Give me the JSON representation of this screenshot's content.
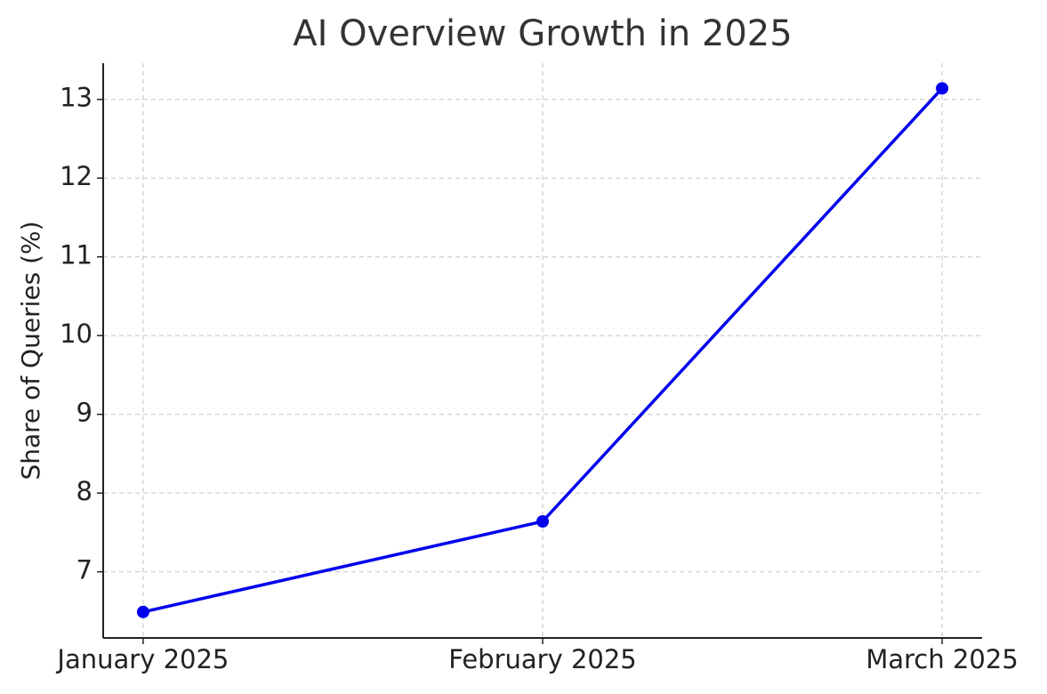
{
  "chart_data": {
    "type": "line",
    "title": "AI Overview Growth in 2025",
    "y_label": "Share of Queries (%)",
    "categories": [
      "January 2025",
      "February 2025",
      "March 2025"
    ],
    "values": [
      6.49,
      7.64,
      13.14
    ],
    "color": "#0000ee",
    "ylim": [
      6.16,
      13.46
    ],
    "yticks": [
      7,
      8,
      9,
      10,
      11,
      12,
      13
    ],
    "grid": true
  }
}
